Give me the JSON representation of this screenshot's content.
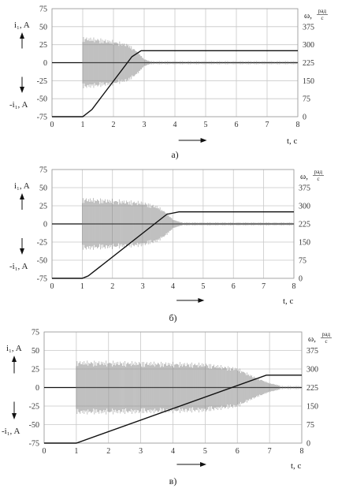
{
  "chart_data": [
    {
      "type": "line",
      "caption": "а)",
      "x_axis": {
        "label": "t, c",
        "range": [
          0,
          8
        ],
        "ticks": [
          "0",
          "1",
          "2",
          "3",
          "4",
          "5",
          "6",
          "7",
          "8"
        ]
      },
      "y_left": {
        "label_top": "i₁, A",
        "label_bottom": "-i₁, A",
        "range": [
          -75,
          75
        ],
        "ticks": [
          "75",
          "50",
          "25",
          "0",
          "-25",
          "-50",
          "-75"
        ]
      },
      "y_right": {
        "label": "ω,",
        "unit_num": "рад",
        "unit_den": "с",
        "range": [
          0,
          450
        ],
        "ticks": [
          "375",
          "300",
          "225",
          "150",
          "75",
          "0"
        ]
      },
      "grid": true,
      "series": [
        {
          "kind": "current_envelope",
          "axis": "left",
          "x": [
            1.0,
            1.5,
            2.0,
            2.5,
            2.8,
            3.0,
            3.2
          ],
          "amplitude": [
            35,
            33,
            30,
            25,
            15,
            5,
            2
          ]
        },
        {
          "kind": "speed",
          "axis": "right",
          "x": [
            0,
            1.0,
            1.3,
            2.6,
            2.9,
            8
          ],
          "y": [
            0,
            0,
            30,
            250,
            275,
            275
          ]
        }
      ]
    },
    {
      "type": "line",
      "caption": "б)",
      "x_axis": {
        "label": "t, c",
        "range": [
          0,
          8
        ],
        "ticks": [
          "0",
          "1",
          "2",
          "3",
          "4",
          "5",
          "6",
          "7",
          "8"
        ]
      },
      "y_left": {
        "label_top": "i₁, A",
        "label_bottom": "-i₁, A",
        "range": [
          -75,
          75
        ],
        "ticks": [
          "75",
          "50",
          "25",
          "0",
          "-25",
          "-50",
          "-75"
        ]
      },
      "y_right": {
        "label": "ω,",
        "unit_num": "рад",
        "unit_den": "с",
        "range": [
          0,
          450
        ],
        "ticks": [
          "375",
          "300",
          "225",
          "150",
          "75",
          "0"
        ]
      },
      "grid": true,
      "series": [
        {
          "kind": "current_envelope",
          "axis": "left",
          "x": [
            1.0,
            2.0,
            3.0,
            3.5,
            3.8,
            4.0,
            4.3
          ],
          "amplitude": [
            35,
            33,
            30,
            24,
            15,
            6,
            2
          ]
        },
        {
          "kind": "speed",
          "axis": "right",
          "x": [
            0,
            1.0,
            1.2,
            3.8,
            4.2,
            8
          ],
          "y": [
            0,
            0,
            10,
            265,
            275,
            275
          ]
        }
      ]
    },
    {
      "type": "line",
      "caption": "в)",
      "x_axis": {
        "label": "t, c",
        "range": [
          0,
          8
        ],
        "ticks": [
          "0",
          "1",
          "2",
          "3",
          "4",
          "5",
          "6",
          "7",
          "8"
        ]
      },
      "y_left": {
        "label_top": "i₁, A",
        "label_bottom": "-i₁, A",
        "range": [
          -75,
          75
        ],
        "ticks": [
          "75",
          "50",
          "25",
          "0",
          "-25",
          "-50",
          "-75"
        ]
      },
      "y_right": {
        "label": "ω,",
        "unit_num": "рад",
        "unit_den": "с",
        "range": [
          0,
          450
        ],
        "ticks": [
          "375",
          "300",
          "225",
          "150",
          "75",
          "0"
        ]
      },
      "grid": true,
      "series": [
        {
          "kind": "current_envelope",
          "axis": "left",
          "x": [
            1.0,
            3.0,
            5.0,
            6.0,
            6.5,
            7.0,
            7.3
          ],
          "amplitude": [
            35,
            34,
            32,
            26,
            15,
            6,
            3
          ]
        },
        {
          "kind": "speed",
          "axis": "right",
          "x": [
            0,
            1.0,
            6.9,
            8
          ],
          "y": [
            0,
            0,
            275,
            275
          ]
        }
      ]
    }
  ]
}
